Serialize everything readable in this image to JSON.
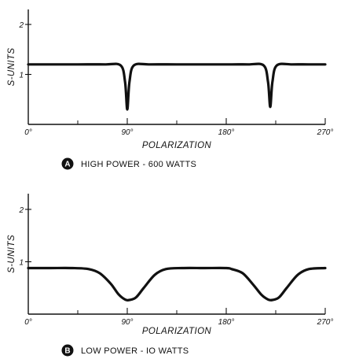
{
  "chart_data": [
    {
      "type": "line",
      "panel": "A",
      "caption": "HIGH POWER - 600 WATTS",
      "xlabel": "POLARIZATION",
      "ylabel": "S-UNITS",
      "xlim": [
        0,
        270
      ],
      "ylim": [
        0,
        2.3
      ],
      "x_ticks": [
        0,
        90,
        180,
        270
      ],
      "x_tick_labels": [
        "0°",
        "90°",
        "180°",
        "270°"
      ],
      "y_ticks": [
        1,
        2
      ],
      "y_tick_labels": [
        "1",
        "2"
      ],
      "x": [
        0,
        20,
        45,
        70,
        84,
        88,
        90,
        92,
        96,
        110,
        135,
        160,
        185,
        200,
        214,
        218,
        220,
        222,
        226,
        240,
        255,
        270
      ],
      "y": [
        1.2,
        1.2,
        1.2,
        1.2,
        1.18,
        0.85,
        0.3,
        0.85,
        1.18,
        1.2,
        1.2,
        1.2,
        1.2,
        1.2,
        1.18,
        0.85,
        0.35,
        0.85,
        1.18,
        1.2,
        1.2,
        1.2
      ]
    },
    {
      "type": "line",
      "panel": "B",
      "caption": "LOW POWER - IO WATTS",
      "xlabel": "POLARIZATION",
      "ylabel": "S-UNITS",
      "xlim": [
        0,
        270
      ],
      "ylim": [
        0,
        2.3
      ],
      "x_ticks": [
        0,
        90,
        180,
        270
      ],
      "x_tick_labels": [
        "0°",
        "90°",
        "180°",
        "270°"
      ],
      "y_ticks": [
        1,
        2
      ],
      "y_tick_labels": [
        "1",
        "2"
      ],
      "x": [
        0,
        20,
        40,
        55,
        65,
        75,
        82,
        88,
        92,
        98,
        105,
        115,
        125,
        140,
        160,
        180,
        185,
        195,
        205,
        212,
        218,
        222,
        228,
        235,
        245,
        255,
        270
      ],
      "y": [
        0.88,
        0.88,
        0.88,
        0.86,
        0.78,
        0.58,
        0.38,
        0.28,
        0.27,
        0.32,
        0.5,
        0.75,
        0.86,
        0.88,
        0.88,
        0.88,
        0.86,
        0.78,
        0.55,
        0.37,
        0.28,
        0.27,
        0.32,
        0.5,
        0.75,
        0.86,
        0.88
      ]
    }
  ]
}
